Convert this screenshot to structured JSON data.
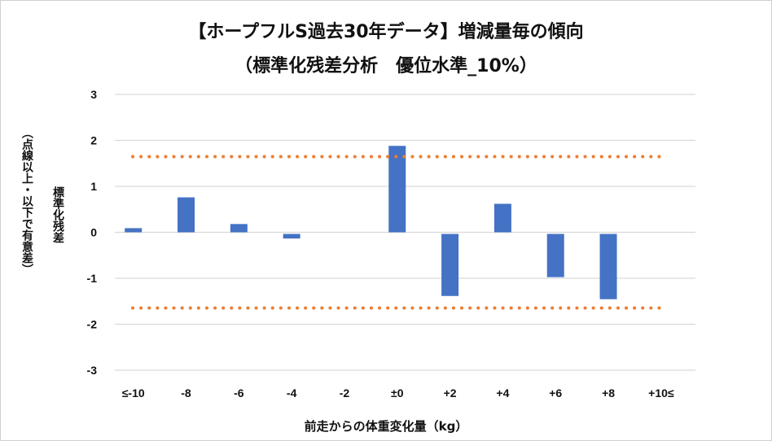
{
  "chart_data": {
    "type": "bar",
    "title": "【ホープフルS過去30年データ】増減量毎の傾向",
    "subtitle": "（標準化残差分析　優位水準_10%）",
    "xlabel": "前走からの体重変化量（kg）",
    "ylabel": "標準化残差",
    "ylabel_note": "（点線以上・以下で有意差）",
    "categories": [
      "≤-10",
      "-8",
      "-6",
      "-4",
      "-2",
      "±0",
      "+2",
      "+4",
      "+6",
      "+8",
      "+10≤"
    ],
    "values": [
      0.09,
      0.76,
      0.18,
      -0.1,
      0,
      1.88,
      -1.35,
      0.62,
      -0.94,
      -1.42,
      0
    ],
    "threshold_lines": [
      1.645,
      -1.645
    ],
    "ylim": [
      -3,
      3
    ],
    "yticks": [
      3,
      2,
      1,
      0,
      -1,
      -2,
      -3
    ],
    "grid": true,
    "colors": {
      "bar": "#4472C4",
      "threshold": "#ED7D31",
      "grid": "#d9d9d9"
    }
  }
}
